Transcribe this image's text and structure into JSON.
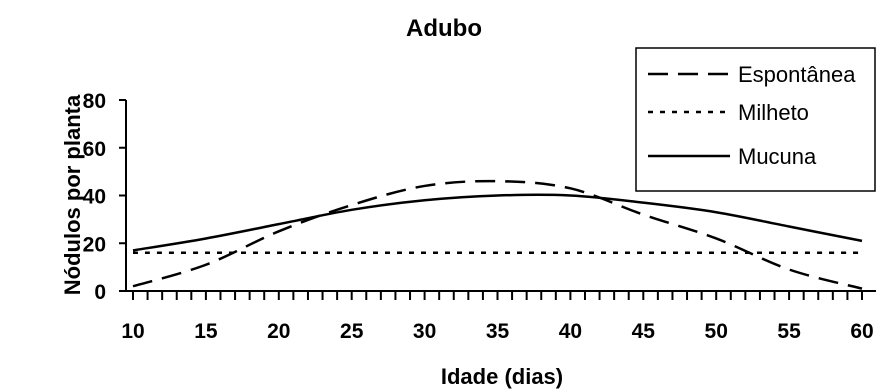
{
  "chart_data": {
    "type": "line",
    "title": "Adubo",
    "xlabel": "Idade (dias)",
    "ylabel": "Nódulos por planta",
    "xlim": [
      10,
      60
    ],
    "ylim": [
      0,
      80
    ],
    "x_ticks": [
      10,
      15,
      20,
      25,
      30,
      35,
      40,
      45,
      50,
      55,
      60
    ],
    "y_ticks": [
      0,
      20,
      40,
      60,
      80
    ],
    "legend_position": "top-right",
    "grid": false,
    "series": [
      {
        "name": "Espontânea",
        "style": "dashed",
        "x": [
          10,
          15,
          20,
          25,
          30,
          35,
          40,
          45,
          50,
          55,
          60
        ],
        "y": [
          2,
          11,
          25,
          36,
          44,
          46,
          43,
          32,
          22,
          9,
          1
        ]
      },
      {
        "name": "Milheto",
        "style": "dotted",
        "x": [
          10,
          15,
          20,
          25,
          30,
          35,
          40,
          45,
          50,
          55,
          60
        ],
        "y": [
          16,
          16,
          16,
          16,
          16,
          16,
          16,
          16,
          16,
          16,
          16
        ]
      },
      {
        "name": "Mucuna",
        "style": "solid",
        "x": [
          10,
          15,
          20,
          25,
          30,
          35,
          40,
          45,
          50,
          55,
          60
        ],
        "y": [
          17,
          22,
          28,
          34,
          38,
          40,
          40,
          37,
          33,
          27,
          21
        ]
      }
    ]
  }
}
